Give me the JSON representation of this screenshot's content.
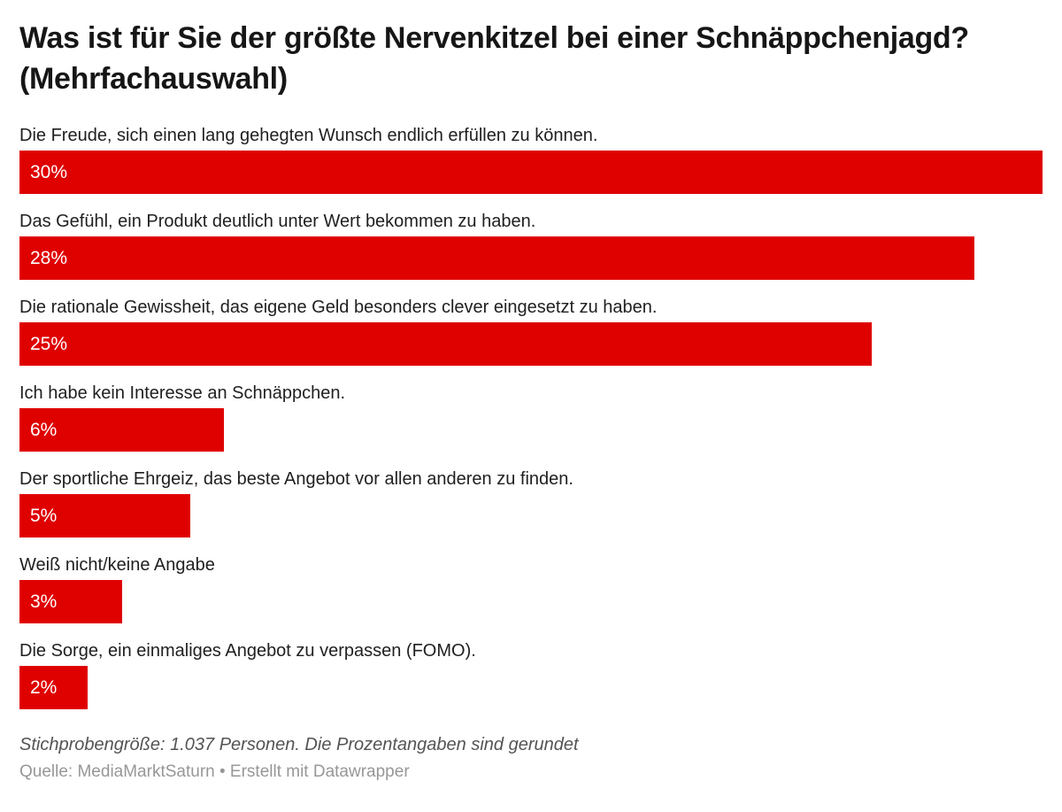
{
  "chart_data": {
    "type": "bar",
    "orientation": "horizontal",
    "title": "Was ist für Sie der größte Nervenkitzel bei einer Schnäppchenjagd? (Mehrfachauswahl)",
    "categories": [
      "Die Freude, sich einen lang gehegten Wunsch endlich erfüllen zu können.",
      "Das Gefühl, ein Produkt deutlich unter Wert bekommen zu haben.",
      "Die rationale Gewissheit, das eigene Geld besonders clever eingesetzt zu haben.",
      "Ich habe kein Interesse an Schnäppchen.",
      "Der sportliche Ehrgeiz, das beste Angebot vor allen anderen zu finden.",
      "Weiß nicht/keine Angabe",
      "Die Sorge, ein einmaliges Angebot zu verpassen (FOMO)."
    ],
    "values": [
      30,
      28,
      25,
      6,
      5,
      3,
      2
    ],
    "value_labels": [
      "30%",
      "28%",
      "25%",
      "6%",
      "5%",
      "3%",
      "2%"
    ],
    "value_suffix": "%",
    "max_value": 30,
    "xlim": [
      0,
      30
    ],
    "grid": false,
    "legend": false,
    "bar_color": "#df0000",
    "value_label_color": "#ffffff",
    "notes": "Stichprobengröße: 1.037 Personen. Die Prozentangaben sind gerundet",
    "source": "Quelle: MediaMarktSaturn • Erstellt mit Datawrapper"
  }
}
